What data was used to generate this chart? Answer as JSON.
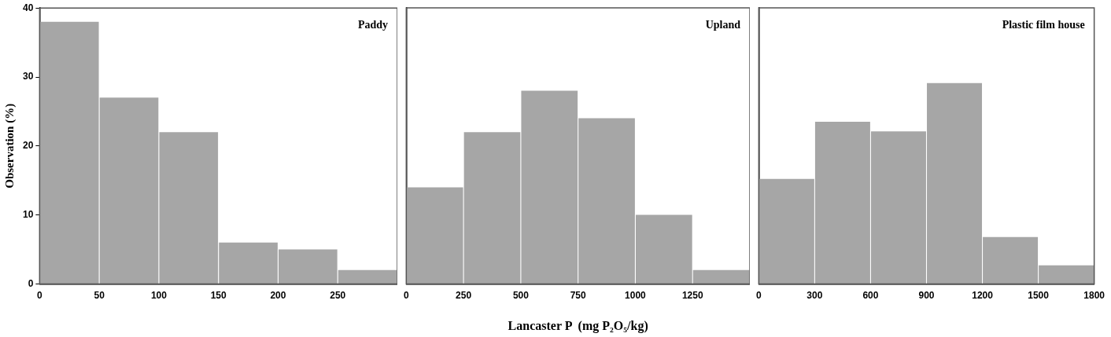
{
  "chart_data": [
    {
      "type": "histogram",
      "title": "Paddy",
      "ylabel": "Observation (%)",
      "bins": [
        0,
        50,
        100,
        150,
        200,
        250,
        300
      ],
      "values": [
        38,
        27,
        22,
        6,
        5,
        2
      ],
      "color": "#a6a6a6",
      "xlim": [
        0,
        300
      ],
      "xticks": [
        0,
        50,
        100,
        150,
        200,
        250
      ],
      "ylim": [
        0,
        40
      ],
      "yticks": [
        0,
        10,
        20,
        30,
        40
      ],
      "grid": false,
      "legend": false
    },
    {
      "type": "histogram",
      "title": "Upland",
      "xlabel": "Lancaster P  (mg P₂O₅/kg)",
      "bins": [
        0,
        250,
        500,
        750,
        1000,
        1250,
        1500
      ],
      "values": [
        14,
        22,
        28,
        24,
        10,
        2
      ],
      "color": "#a6a6a6",
      "xlim": [
        0,
        1500
      ],
      "xticks": [
        0,
        250,
        500,
        750,
        1000,
        1250
      ],
      "ylim": [
        0,
        40
      ],
      "tick_labels": "x",
      "grid": false,
      "legend": false
    },
    {
      "type": "histogram",
      "title": "Plastic film house",
      "bins": [
        0,
        300,
        600,
        900,
        1200,
        1500,
        1800
      ],
      "values": [
        15.2,
        23.5,
        22.1,
        29.1,
        6.8,
        2.7
      ],
      "color": "#a6a6a6",
      "xlim": [
        0,
        1800
      ],
      "xticks": [
        0,
        300,
        600,
        900,
        1200,
        1500,
        1800
      ],
      "ylim": [
        0,
        40
      ],
      "tick_labels": "x",
      "grid": false,
      "legend": false
    }
  ]
}
